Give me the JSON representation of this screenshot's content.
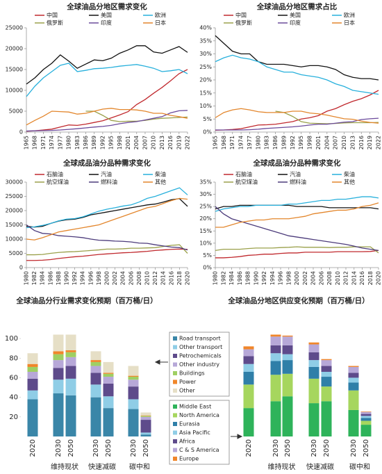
{
  "chart_data": [
    {
      "type": "line",
      "title": "全球油品分地区需求变化",
      "x": [
        1965,
        1968,
        1971,
        1974,
        1977,
        1980,
        1983,
        1986,
        1989,
        1992,
        1995,
        1998,
        2001,
        2004,
        2007,
        2010,
        2013,
        2016,
        2019,
        2022
      ],
      "xlim": [
        1965,
        2022
      ],
      "xticks": [
        1965,
        1968,
        1971,
        1974,
        1977,
        1980,
        1983,
        1986,
        1989,
        1992,
        1995,
        1998,
        2001,
        2004,
        2007,
        2010,
        2013,
        2016,
        2019,
        2022
      ],
      "ylim": [
        0,
        25000
      ],
      "yticks": [
        0,
        5000,
        10000,
        15000,
        20000,
        25000
      ],
      "series": [
        {
          "name": "中国",
          "color": "#c0282d",
          "values": [
            200,
            300,
            500,
            700,
            1200,
            1700,
            1600,
            1900,
            2300,
            2700,
            3400,
            4100,
            4900,
            6600,
            7800,
            9300,
            10700,
            12300,
            14000,
            15000
          ]
        },
        {
          "name": "美国",
          "color": "#111111",
          "values": [
            11500,
            13000,
            15000,
            16500,
            18500,
            17000,
            15300,
            16300,
            17300,
            17100,
            17700,
            18900,
            19700,
            20700,
            20700,
            19200,
            18900,
            19700,
            20500,
            19100
          ]
        },
        {
          "name": "欧洲",
          "color": "#27b0dc",
          "values": [
            8500,
            11000,
            13000,
            14500,
            16000,
            16500,
            14500,
            14800,
            15200,
            15300,
            15500,
            15800,
            16000,
            16200,
            15800,
            15300,
            14500,
            14700,
            15000,
            14000
          ]
        },
        {
          "name": "俄罗斯",
          "color": "#9aa04a",
          "values": [
            null,
            null,
            null,
            null,
            null,
            null,
            null,
            5000,
            5000,
            4000,
            2800,
            2500,
            2600,
            2600,
            2800,
            3100,
            3300,
            3400,
            3500,
            3600
          ]
        },
        {
          "name": "印度",
          "color": "#6b4a9b",
          "values": [
            250,
            300,
            350,
            400,
            500,
            650,
            800,
            1000,
            1200,
            1350,
            1600,
            2000,
            2300,
            2500,
            2900,
            3300,
            3700,
            4600,
            5100,
            5200
          ]
        },
        {
          "name": "日本",
          "color": "#e3862c",
          "values": [
            1700,
            2800,
            3800,
            5000,
            4900,
            4800,
            4300,
            4500,
            5000,
            5500,
            5700,
            5400,
            5400,
            5300,
            5000,
            4500,
            4500,
            4000,
            3700,
            3300
          ]
        }
      ]
    },
    {
      "type": "line",
      "title": "全球油品分地区需求占比",
      "x": [
        1965,
        1968,
        1971,
        1974,
        1977,
        1980,
        1983,
        1986,
        1989,
        1992,
        1995,
        1998,
        2001,
        2004,
        2007,
        2010,
        2013,
        2016,
        2019,
        2022
      ],
      "xlim": [
        1965,
        2022
      ],
      "xticks": [
        1965,
        1968,
        1971,
        1974,
        1977,
        1980,
        1983,
        1986,
        1989,
        1992,
        1995,
        1998,
        2001,
        2004,
        2007,
        2010,
        2013,
        2016,
        2019,
        2022
      ],
      "ylim": [
        0,
        40
      ],
      "yticks": [
        {
          "value": 0,
          "label": "0%"
        },
        {
          "value": 5,
          "label": "5%"
        },
        {
          "value": 10,
          "label": "10%"
        },
        {
          "value": 15,
          "label": "15%"
        },
        {
          "value": 20,
          "label": "20%"
        },
        {
          "value": 25,
          "label": "25%"
        },
        {
          "value": 30,
          "label": "30%"
        },
        {
          "value": 35,
          "label": "35%"
        },
        {
          "value": 40,
          "label": "40%"
        }
      ],
      "series": [
        {
          "name": "中国",
          "color": "#c0282d",
          "values": [
            0.7,
            0.8,
            1,
            1.3,
            2,
            2.7,
            2.8,
            3,
            3.5,
            4,
            5,
            5.5,
            6.3,
            8,
            9,
            10.5,
            11.8,
            12.8,
            14.2,
            16
          ]
        },
        {
          "name": "美国",
          "color": "#111111",
          "values": [
            37,
            34,
            31,
            30,
            30,
            27,
            26,
            26,
            26,
            25.5,
            25,
            25.5,
            25.5,
            25,
            24,
            22,
            21,
            20.5,
            20.5,
            20
          ]
        },
        {
          "name": "欧洲",
          "color": "#27b0dc",
          "values": [
            27,
            28.5,
            29.5,
            28.5,
            28,
            27,
            25,
            24,
            23,
            23,
            22,
            21.5,
            21,
            20,
            18.5,
            17.5,
            16,
            15.5,
            15,
            14.5
          ]
        },
        {
          "name": "俄罗斯",
          "color": "#9aa04a",
          "values": [
            null,
            null,
            null,
            null,
            null,
            null,
            null,
            8,
            7.5,
            6,
            4,
            3.4,
            3.3,
            3.2,
            3.3,
            3.5,
            3.6,
            3.6,
            3.6,
            3.7
          ]
        },
        {
          "name": "印度",
          "color": "#6b4a9b",
          "values": [
            0.8,
            0.8,
            0.8,
            0.8,
            0.9,
            1.1,
            1.4,
            1.6,
            1.8,
            2,
            2.3,
            2.7,
            3,
            3,
            3.4,
            3.8,
            4,
            4.8,
            5.1,
            5.3
          ]
        },
        {
          "name": "日本",
          "color": "#e3862c",
          "values": [
            5.5,
            7.5,
            8.5,
            9,
            8.5,
            7.8,
            7.5,
            7.5,
            7.5,
            8,
            8,
            7.3,
            7,
            6.5,
            5.8,
            5.1,
            4.9,
            4.2,
            3.7,
            3.4
          ]
        }
      ]
    },
    {
      "type": "line",
      "title": "全球成品油分品种需求变化",
      "x": [
        1980,
        1982,
        1984,
        1986,
        1988,
        1990,
        1992,
        1994,
        1996,
        1998,
        2000,
        2002,
        2004,
        2006,
        2008,
        2010,
        2012,
        2014,
        2016,
        2018,
        2020
      ],
      "xlim": [
        1980,
        2020
      ],
      "xticks": [
        1980,
        1982,
        1984,
        1986,
        1988,
        1990,
        1992,
        1994,
        1996,
        1998,
        2000,
        2002,
        2004,
        2006,
        2008,
        2010,
        2012,
        2014,
        2016,
        2018,
        2020
      ],
      "ylim": [
        0,
        30000
      ],
      "yticks": [
        0,
        5000,
        10000,
        15000,
        20000,
        25000,
        30000
      ],
      "series": [
        {
          "name": "石脑油",
          "color": "#c0282d",
          "values": [
            2500,
            2500,
            2600,
            2800,
            3200,
            3500,
            3800,
            4000,
            4300,
            4600,
            4800,
            5000,
            5200,
            5300,
            5500,
            5700,
            6000,
            6200,
            6400,
            6500,
            6400
          ]
        },
        {
          "name": "汽油",
          "color": "#111111",
          "values": [
            14500,
            14200,
            14500,
            15500,
            16300,
            16800,
            17000,
            17600,
            18500,
            19000,
            19500,
            20000,
            20500,
            21000,
            21500,
            22000,
            22300,
            23000,
            23800,
            24200,
            21500
          ]
        },
        {
          "name": "柴油",
          "color": "#27b0dc",
          "values": [
            14000,
            14300,
            14800,
            15500,
            16400,
            17000,
            17200,
            17800,
            18800,
            19800,
            20500,
            21000,
            21600,
            22000,
            23000,
            24300,
            25000,
            26000,
            27000,
            28000,
            25500
          ]
        },
        {
          "name": "航空煤油",
          "color": "#9aa04a",
          "values": [
            4500,
            4500,
            4600,
            5000,
            5300,
            5500,
            5600,
            5800,
            6000,
            6200,
            6500,
            6500,
            6600,
            6800,
            6800,
            6900,
            7000,
            7400,
            7800,
            8000,
            5000
          ]
        },
        {
          "name": "燃料油",
          "color": "#4b3a7a",
          "values": [
            15000,
            13000,
            12000,
            11800,
            11200,
            11000,
            10800,
            10500,
            10000,
            9600,
            9500,
            9300,
            9200,
            9000,
            8600,
            8500,
            8000,
            7600,
            7200,
            7000,
            6200
          ]
        },
        {
          "name": "其他",
          "color": "#e3862c",
          "values": [
            10000,
            9700,
            10500,
            11500,
            12500,
            13000,
            13500,
            14000,
            14500,
            15000,
            16000,
            17000,
            18000,
            19000,
            20000,
            21000,
            21500,
            22500,
            23500,
            24300,
            24000
          ]
        }
      ]
    },
    {
      "type": "line",
      "title": "全球成品油分品种需求变化",
      "x": [
        1980,
        1982,
        1984,
        1986,
        1988,
        1990,
        1992,
        1994,
        1996,
        1998,
        2000,
        2002,
        2004,
        2006,
        2008,
        2010,
        2012,
        2014,
        2016,
        2018,
        2020
      ],
      "xlim": [
        1980,
        2020
      ],
      "xticks": [
        1980,
        1982,
        1984,
        1986,
        1988,
        1990,
        1992,
        1994,
        1996,
        1998,
        2000,
        2002,
        2004,
        2006,
        2008,
        2010,
        2012,
        2014,
        2016,
        2018,
        2020
      ],
      "ylim": [
        0,
        35
      ],
      "yticks": [
        {
          "value": 0,
          "label": "0%"
        },
        {
          "value": 5,
          "label": "5%"
        },
        {
          "value": 10,
          "label": "10%"
        },
        {
          "value": 15,
          "label": "15%"
        },
        {
          "value": 20,
          "label": "20%"
        },
        {
          "value": 25,
          "label": "25%"
        },
        {
          "value": 30,
          "label": "30%"
        },
        {
          "value": 35,
          "label": "35%"
        }
      ],
      "series": [
        {
          "name": "石脑油",
          "color": "#c0282d",
          "values": [
            4,
            4,
            4.2,
            4.5,
            5,
            5.2,
            5.5,
            5.5,
            5.8,
            6,
            6,
            6.3,
            6.3,
            6.3,
            6.3,
            6.5,
            6.5,
            6.5,
            6.5,
            6.6,
            7
          ]
        },
        {
          "name": "汽油",
          "color": "#111111",
          "values": [
            24,
            25,
            25,
            25.5,
            25.5,
            25.5,
            25.5,
            25.5,
            25.5,
            25.5,
            25,
            25,
            25,
            25,
            24.5,
            24.5,
            24.5,
            24.5,
            24.5,
            24.5,
            24
          ]
        },
        {
          "name": "柴油",
          "color": "#27b0dc",
          "values": [
            23,
            24,
            24.5,
            25,
            25,
            25.5,
            25.5,
            25.5,
            25.5,
            26,
            26,
            26.5,
            27,
            27.5,
            27.5,
            28,
            28,
            28.5,
            29,
            29,
            28.5
          ]
        },
        {
          "name": "航空煤油",
          "color": "#9aa04a",
          "values": [
            7,
            7.5,
            7.5,
            7.5,
            7.8,
            8,
            8,
            8,
            8.2,
            8.3,
            8.5,
            8.3,
            8.3,
            8.3,
            8.2,
            8.3,
            8.3,
            8.5,
            8.5,
            8.5,
            6
          ]
        },
        {
          "name": "燃料油",
          "color": "#4b3a7a",
          "values": [
            25,
            22,
            20,
            19,
            18,
            17,
            16,
            15,
            14,
            13,
            12.5,
            12,
            11.5,
            11,
            10.5,
            10,
            9.5,
            8.8,
            8,
            7.5,
            7
          ]
        },
        {
          "name": "其他",
          "color": "#e3862c",
          "values": [
            16.5,
            16.5,
            17.5,
            18.5,
            19,
            19.5,
            19.5,
            20,
            20,
            20,
            20.5,
            21,
            22,
            22.5,
            23,
            23.5,
            23.5,
            24,
            25,
            25.5,
            26.5
          ]
        }
      ]
    },
    {
      "type": "stacked_bar",
      "title": "全球油品分行业需求变化预期（百万桶/日）",
      "categories": [
        "2020",
        "2030",
        "2050",
        "2030",
        "2050",
        "2030",
        "2050"
      ],
      "groups": [
        "维持现状",
        "快速减碳",
        "碳中和"
      ],
      "ylim": [
        0,
        110
      ],
      "yticks": [
        20,
        40,
        60,
        80,
        100
      ],
      "series": [
        {
          "name": "Road transport",
          "color": "#3a86a8",
          "values": [
            38,
            44,
            42,
            40,
            29,
            28,
            2
          ]
        },
        {
          "name": "Other transport",
          "color": "#8fcde6",
          "values": [
            9,
            14,
            17,
            13,
            12,
            10,
            2
          ]
        },
        {
          "name": "Petrochemicals",
          "color": "#5e4b8b",
          "values": [
            12,
            12,
            13,
            12,
            13,
            13,
            13
          ]
        },
        {
          "name": "Other industry",
          "color": "#b7a8d8",
          "values": [
            7,
            8,
            9,
            7,
            7,
            7,
            3
          ]
        },
        {
          "name": "Buildings",
          "color": "#9fcf63",
          "values": [
            5,
            6,
            5,
            4,
            3,
            3,
            1
          ]
        },
        {
          "name": "Power",
          "color": "#f0862a",
          "values": [
            3,
            3,
            2,
            2,
            1,
            1,
            0.5
          ]
        },
        {
          "name": "Other",
          "color": "#e6dfc6",
          "values": [
            11,
            17,
            16,
            9,
            11,
            10,
            3
          ]
        }
      ]
    },
    {
      "type": "stacked_bar",
      "title": "全球油品分地区供应变化预期（百万桶/日）",
      "categories": [
        "2020",
        "2030",
        "2050",
        "2030",
        "2050",
        "2030",
        "2050"
      ],
      "groups": [
        "维持现状",
        "快速减碳",
        "碳中和"
      ],
      "ylim": [
        0,
        110
      ],
      "series": [
        {
          "name": "Middle East",
          "color": "#2eb35a",
          "values": [
            29,
            36,
            41,
            34,
            36,
            27,
            12
          ]
        },
        {
          "name": "North America",
          "color": "#a6d65e",
          "values": [
            24,
            27,
            23,
            25,
            15,
            20,
            4
          ]
        },
        {
          "name": "Eurasia",
          "color": "#2f7fa8",
          "values": [
            13,
            14,
            14,
            12,
            10,
            8,
            3
          ]
        },
        {
          "name": "Asia Pacific",
          "color": "#8fcde6",
          "values": [
            8,
            8,
            6,
            7,
            5,
            5,
            2
          ]
        },
        {
          "name": "Africa",
          "color": "#5e4b8b",
          "values": [
            8,
            8,
            9,
            8,
            6,
            5,
            2
          ]
        },
        {
          "name": "C & S America",
          "color": "#b7a8d8",
          "values": [
            7,
            9,
            9,
            8,
            6,
            6,
            2
          ]
        },
        {
          "name": "Europe",
          "color": "#f0862a",
          "values": [
            3,
            2,
            1,
            2,
            1,
            1,
            0.5
          ]
        }
      ]
    }
  ]
}
